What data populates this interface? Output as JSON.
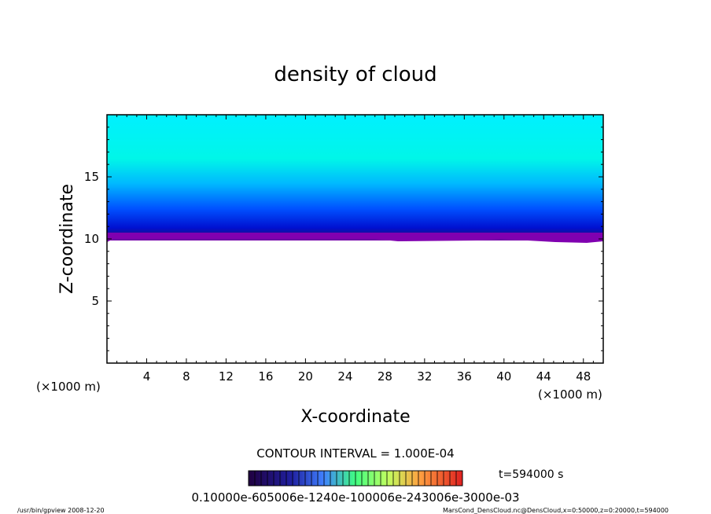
{
  "chart_data": {
    "type": "heatmap",
    "title": "density of cloud",
    "xlabel": "X-coordinate",
    "ylabel": "Z-coordinate",
    "x_unit_left": "(×1000 m)",
    "x_unit_right": "(×1000 m)",
    "xlim": [
      0,
      50
    ],
    "ylim": [
      0,
      20
    ],
    "x_ticks": [
      4,
      8,
      12,
      16,
      20,
      24,
      28,
      32,
      36,
      40,
      44,
      48
    ],
    "y_ticks": [
      5,
      10,
      15
    ],
    "cloud_base_z": 10,
    "cloud_top_z": 20,
    "contour_interval_text": "CONTOUR INTERVAL = 1.000E-04",
    "time_label": "t=594000 s",
    "colorbar_labels_text": "0.10000e-605006e-1240e-100006e-243006e-3000e-03",
    "colors": {
      "top": "#00ffe0",
      "mid": "#0090ff",
      "low": "#0010c0",
      "base": "#8000b0"
    }
  },
  "footer": {
    "left": "/usr/bin/gpview   2008-12-20",
    "right": "MarsCond_DensCloud.nc@DensCloud,x=0:50000,z=0:20000,t=594000"
  }
}
